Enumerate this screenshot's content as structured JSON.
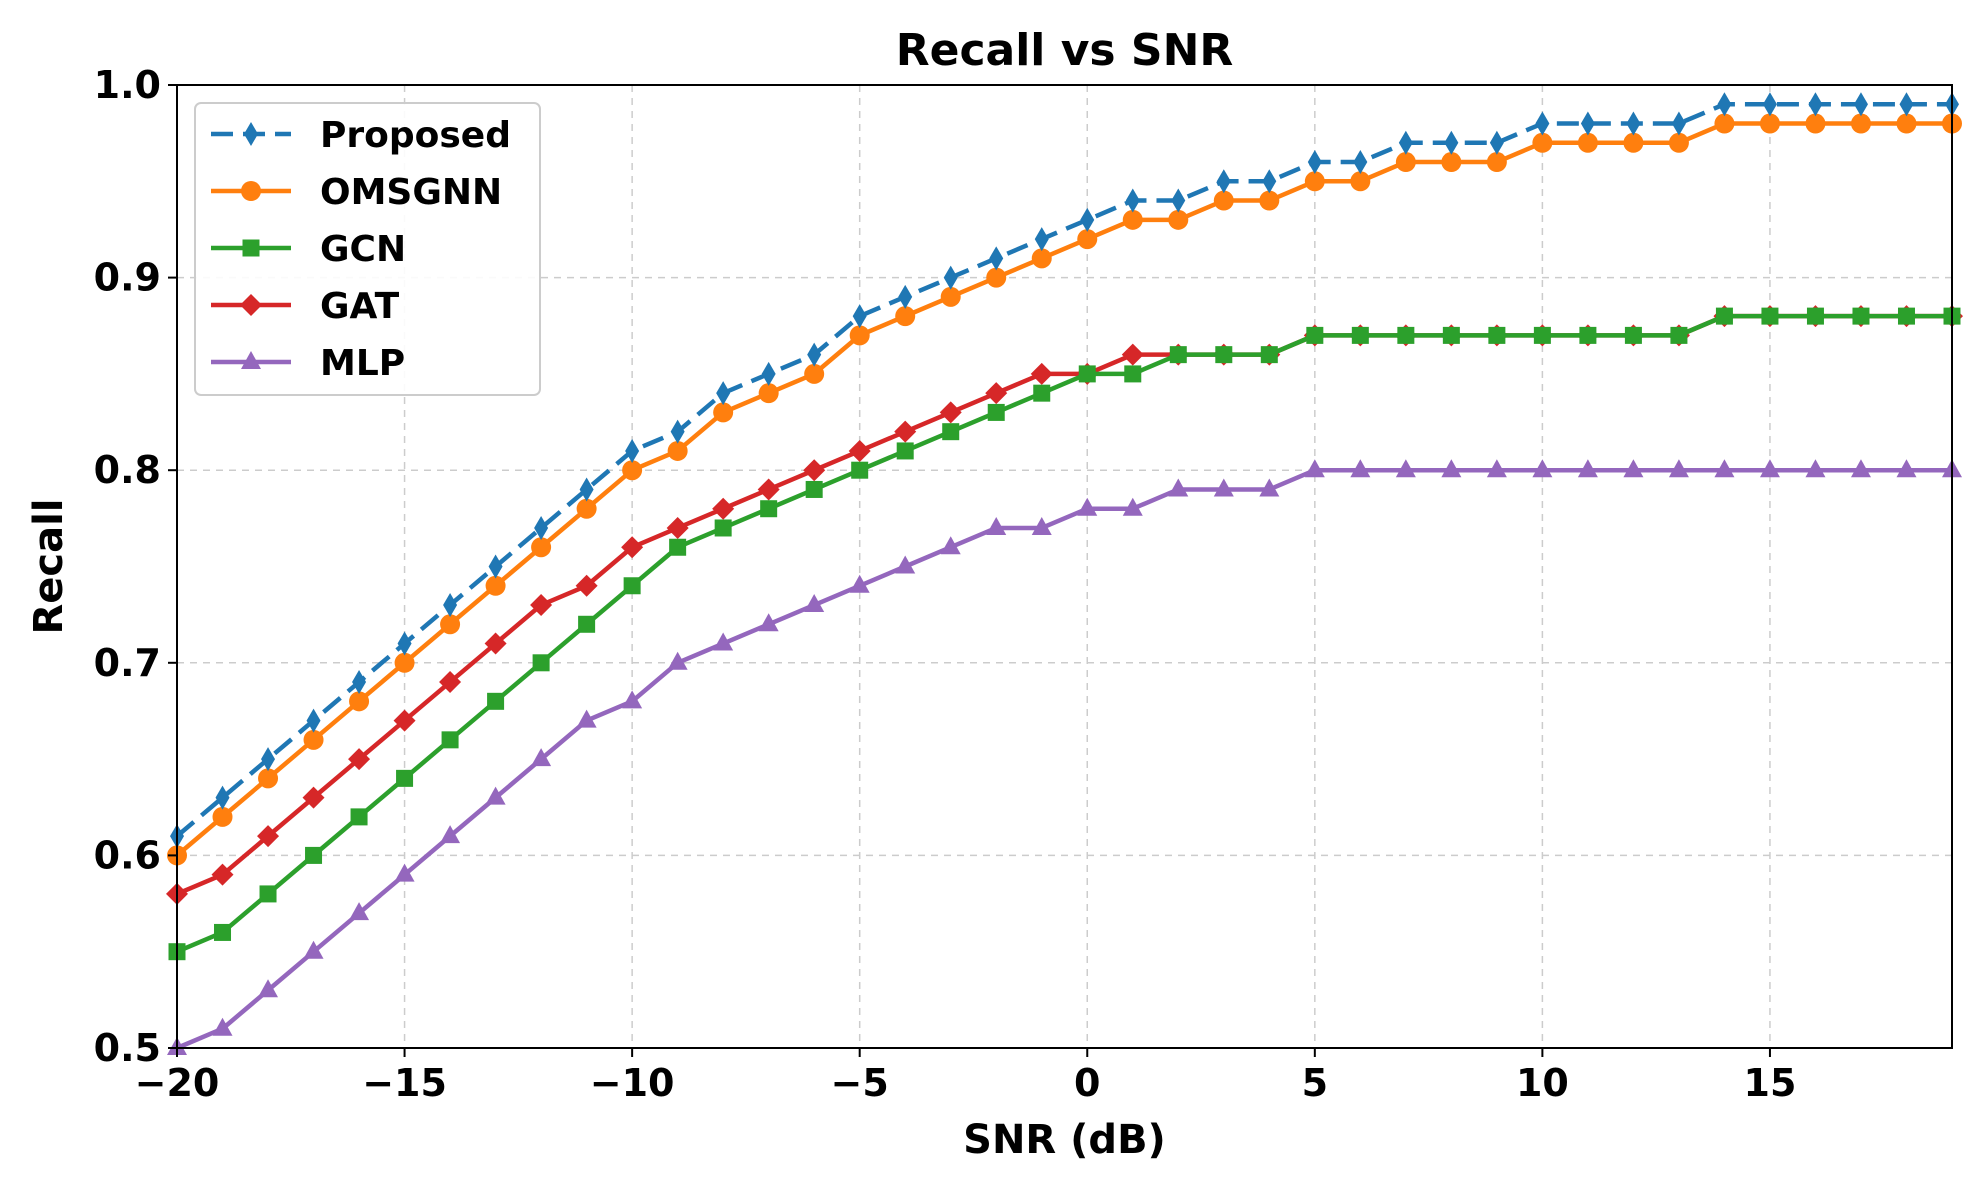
{
  "chart_data": {
    "type": "line",
    "title": "Recall vs SNR",
    "xlabel": "SNR (dB)",
    "ylabel": "Recall",
    "xlim": [
      -20,
      19
    ],
    "ylim": [
      0.5,
      1.0
    ],
    "xticks": [
      -20,
      -15,
      -10,
      -5,
      0,
      5,
      10,
      15
    ],
    "xtick_labels": [
      "−20",
      "−15",
      "−10",
      "−5",
      "0",
      "5",
      "10",
      "15"
    ],
    "yticks": [
      0.5,
      0.6,
      0.7,
      0.8,
      0.9,
      1.0
    ],
    "ytick_labels": [
      "0.5",
      "0.6",
      "0.7",
      "0.8",
      "0.9",
      "1.0"
    ],
    "grid": true,
    "legend_position": "top-left",
    "x": [
      -20,
      -19,
      -18,
      -17,
      -16,
      -15,
      -14,
      -13,
      -12,
      -11,
      -10,
      -9,
      -8,
      -7,
      -6,
      -5,
      -4,
      -3,
      -2,
      -1,
      0,
      1,
      2,
      3,
      4,
      5,
      6,
      7,
      8,
      9,
      10,
      11,
      12,
      13,
      14,
      15,
      16,
      17,
      18,
      19
    ],
    "series": [
      {
        "name": "Proposed",
        "color": "#1f77b4",
        "marker": "thin-diamond",
        "line_style": "dashed",
        "values": [
          0.61,
          0.63,
          0.65,
          0.67,
          0.69,
          0.71,
          0.73,
          0.75,
          0.77,
          0.79,
          0.81,
          0.82,
          0.84,
          0.85,
          0.86,
          0.88,
          0.89,
          0.9,
          0.91,
          0.92,
          0.93,
          0.94,
          0.94,
          0.95,
          0.95,
          0.96,
          0.96,
          0.97,
          0.97,
          0.97,
          0.98,
          0.98,
          0.98,
          0.98,
          0.99,
          0.99,
          0.99,
          0.99,
          0.99,
          0.99
        ]
      },
      {
        "name": "OMSGNN",
        "color": "#ff7f0e",
        "marker": "circle",
        "line_style": "solid",
        "values": [
          0.6,
          0.62,
          0.64,
          0.66,
          0.68,
          0.7,
          0.72,
          0.74,
          0.76,
          0.78,
          0.8,
          0.81,
          0.83,
          0.84,
          0.85,
          0.87,
          0.88,
          0.89,
          0.9,
          0.91,
          0.92,
          0.93,
          0.93,
          0.94,
          0.94,
          0.95,
          0.95,
          0.96,
          0.96,
          0.96,
          0.97,
          0.97,
          0.97,
          0.97,
          0.98,
          0.98,
          0.98,
          0.98,
          0.98,
          0.98
        ]
      },
      {
        "name": "GCN",
        "color": "#2ca02c",
        "marker": "square",
        "line_style": "solid",
        "values": [
          0.55,
          0.56,
          0.58,
          0.6,
          0.62,
          0.64,
          0.66,
          0.68,
          0.7,
          0.72,
          0.74,
          0.76,
          0.77,
          0.78,
          0.79,
          0.8,
          0.81,
          0.82,
          0.83,
          0.84,
          0.85,
          0.85,
          0.86,
          0.86,
          0.86,
          0.87,
          0.87,
          0.87,
          0.87,
          0.87,
          0.87,
          0.87,
          0.87,
          0.87,
          0.88,
          0.88,
          0.88,
          0.88,
          0.88,
          0.88
        ]
      },
      {
        "name": "GAT",
        "color": "#d62728",
        "marker": "diamond",
        "line_style": "solid",
        "values": [
          0.58,
          0.59,
          0.61,
          0.63,
          0.65,
          0.67,
          0.69,
          0.71,
          0.73,
          0.74,
          0.76,
          0.77,
          0.78,
          0.79,
          0.8,
          0.81,
          0.82,
          0.83,
          0.84,
          0.85,
          0.85,
          0.86,
          0.86,
          0.86,
          0.86,
          0.87,
          0.87,
          0.87,
          0.87,
          0.87,
          0.87,
          0.87,
          0.87,
          0.87,
          0.88,
          0.88,
          0.88,
          0.88,
          0.88,
          0.88
        ]
      },
      {
        "name": "MLP",
        "color": "#9467bd",
        "marker": "triangle",
        "line_style": "solid",
        "values": [
          0.5,
          0.51,
          0.53,
          0.55,
          0.57,
          0.59,
          0.61,
          0.63,
          0.65,
          0.67,
          0.68,
          0.7,
          0.71,
          0.72,
          0.73,
          0.74,
          0.75,
          0.76,
          0.77,
          0.77,
          0.78,
          0.78,
          0.79,
          0.79,
          0.79,
          0.8,
          0.8,
          0.8,
          0.8,
          0.8,
          0.8,
          0.8,
          0.8,
          0.8,
          0.8,
          0.8,
          0.8,
          0.8,
          0.8,
          0.8
        ]
      }
    ]
  }
}
